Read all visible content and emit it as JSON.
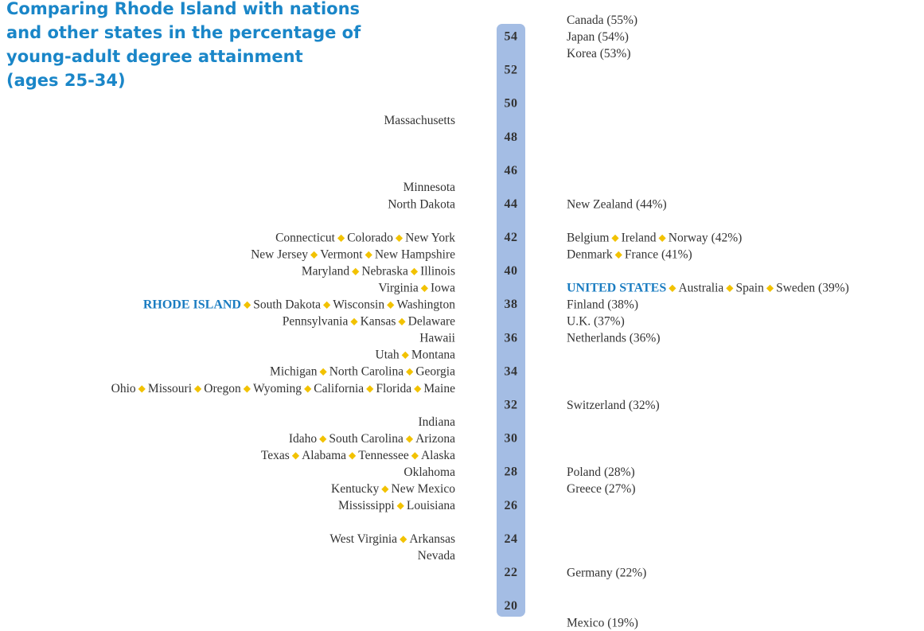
{
  "chart_data": {
    "type": "scale",
    "title": [
      "Comparing Rhode Island with nations",
      "and other states in the percentage of",
      "young-adult degree attainment",
      "(ages 25-34)"
    ],
    "ylim": [
      19.4,
      54.8
    ],
    "yticks": [
      20,
      22,
      24,
      26,
      28,
      30,
      32,
      34,
      36,
      38,
      40,
      42,
      44,
      46,
      48,
      50,
      52,
      54
    ],
    "axis_color": "#a4bde4",
    "separator_color": "#f2c200",
    "highlight_color": "#1a7cc1",
    "states": [
      {
        "names": [
          "Massachusetts"
        ],
        "value": 49
      },
      {
        "names": [
          "Minnesota"
        ],
        "value": 45
      },
      {
        "names": [
          "North Dakota"
        ],
        "value": 44
      },
      {
        "names": [
          "Connecticut",
          "Colorado",
          "New York"
        ],
        "value": 42
      },
      {
        "names": [
          "New Jersey",
          "Vermont",
          "New Hampshire"
        ],
        "value": 41
      },
      {
        "names": [
          "Maryland",
          "Nebraska",
          "Illinois"
        ],
        "value": 40
      },
      {
        "names": [
          "Virginia",
          "Iowa"
        ],
        "value": 39
      },
      {
        "names": [
          "RHODE ISLAND",
          "South Dakota",
          "Wisconsin",
          "Washington"
        ],
        "value": 38,
        "highlight": 0
      },
      {
        "names": [
          "Pennsylvania",
          "Kansas",
          "Delaware"
        ],
        "value": 37
      },
      {
        "names": [
          "Hawaii"
        ],
        "value": 36
      },
      {
        "names": [
          "Utah",
          "Montana"
        ],
        "value": 35
      },
      {
        "names": [
          "Michigan",
          "North Carolina",
          "Georgia"
        ],
        "value": 34
      },
      {
        "names": [
          "Ohio",
          "Missouri",
          "Oregon",
          "Wyoming",
          "California",
          "Florida",
          "Maine"
        ],
        "value": 33
      },
      {
        "names": [
          "Indiana"
        ],
        "value": 31
      },
      {
        "names": [
          "Idaho",
          "South Carolina",
          "Arizona"
        ],
        "value": 30
      },
      {
        "names": [
          "Texas",
          "Alabama",
          "Tennessee",
          "Alaska"
        ],
        "value": 29
      },
      {
        "names": [
          "Oklahoma"
        ],
        "value": 28
      },
      {
        "names": [
          "Kentucky",
          "New Mexico"
        ],
        "value": 27
      },
      {
        "names": [
          "Mississippi",
          "Louisiana"
        ],
        "value": 26
      },
      {
        "names": [
          "West Virginia",
          "Arkansas"
        ],
        "value": 24
      },
      {
        "names": [
          "Nevada"
        ],
        "value": 23
      }
    ],
    "nations": [
      {
        "names": [
          "Canada"
        ],
        "value": 55,
        "value_label": "(55%)"
      },
      {
        "names": [
          "Japan"
        ],
        "value": 54,
        "value_label": "(54%)"
      },
      {
        "names": [
          "Korea"
        ],
        "value": 53,
        "value_label": "(53%)"
      },
      {
        "names": [
          "New Zealand"
        ],
        "value": 44,
        "value_label": "(44%)"
      },
      {
        "names": [
          "Belgium",
          "Ireland",
          "Norway"
        ],
        "value": 42,
        "value_label": "(42%)"
      },
      {
        "names": [
          "Denmark",
          "France"
        ],
        "value": 41,
        "value_label": "(41%)"
      },
      {
        "names": [
          "UNITED STATES",
          "Australia",
          "Spain",
          "Sweden"
        ],
        "value": 39,
        "value_label": "(39%)",
        "highlight": 0
      },
      {
        "names": [
          "Finland"
        ],
        "value": 38,
        "value_label": "(38%)"
      },
      {
        "names": [
          "U.K."
        ],
        "value": 37,
        "value_label": "(37%)"
      },
      {
        "names": [
          "Netherlands"
        ],
        "value": 36,
        "value_label": "(36%)"
      },
      {
        "names": [
          "Switzerland"
        ],
        "value": 32,
        "value_label": "(32%)"
      },
      {
        "names": [
          "Poland"
        ],
        "value": 28,
        "value_label": "(28%)"
      },
      {
        "names": [
          "Greece"
        ],
        "value": 27,
        "value_label": "(27%)"
      },
      {
        "names": [
          "Germany"
        ],
        "value": 22,
        "value_label": "(22%)"
      },
      {
        "names": [
          "Mexico"
        ],
        "value": 19,
        "value_label": "(19%)"
      }
    ]
  }
}
